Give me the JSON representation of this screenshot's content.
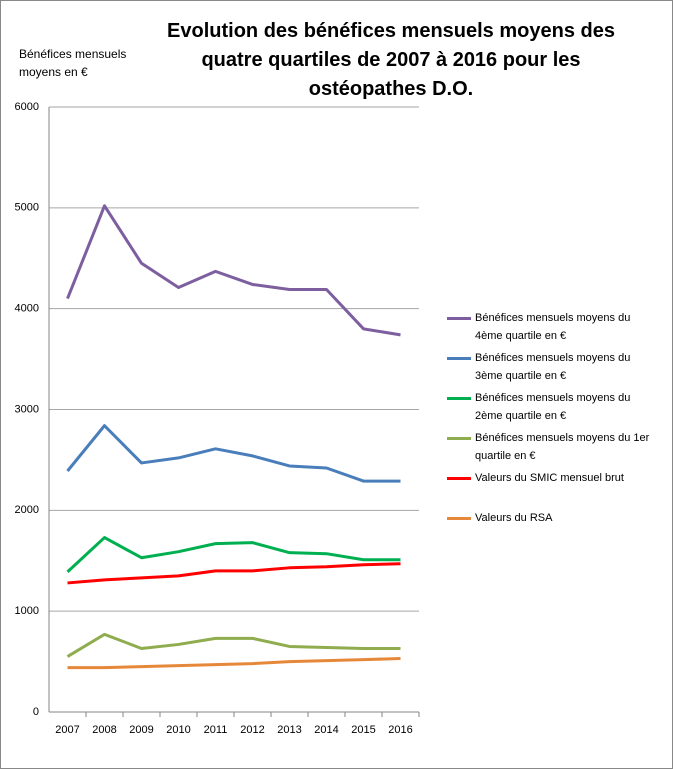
{
  "chart_data": {
    "type": "line",
    "title": "Evolution des bénéfices mensuels moyens des quatre quartiles de 2007 à 2016 pour les ostéopathes D.O.",
    "y_label": "Bénéfices mensuels moyens en €",
    "categories": [
      "2007",
      "2008",
      "2009",
      "2010",
      "2011",
      "2012",
      "2013",
      "2014",
      "2015",
      "2016"
    ],
    "ylim": [
      0,
      6000
    ],
    "yticks": [
      0,
      1000,
      2000,
      3000,
      4000,
      5000,
      6000
    ],
    "grid": true,
    "legend": "right",
    "series": [
      {
        "name": "Bénéfices mensuels moyens du 4ème quartile en €",
        "color": "#7d5fa0",
        "values": [
          4100,
          5020,
          4450,
          4210,
          4370,
          4240,
          4190,
          4190,
          3800,
          3740
        ]
      },
      {
        "name": "Bénéfices mensuels moyens du 3ème quartile en €",
        "color": "#4a7ebb",
        "values": [
          2390,
          2840,
          2470,
          2520,
          2610,
          2540,
          2440,
          2420,
          2290,
          2290
        ]
      },
      {
        "name": "Bénéfices mensuels moyens du 2ème quartile en €",
        "color": "#00b050",
        "values": [
          1390,
          1730,
          1530,
          1590,
          1670,
          1680,
          1580,
          1570,
          1510,
          1510
        ]
      },
      {
        "name": "Bénéfices mensuels moyens du 1er quartile en €",
        "color": "#8fac4e",
        "values": [
          550,
          770,
          630,
          670,
          730,
          730,
          650,
          640,
          630,
          630
        ]
      },
      {
        "name": "Valeurs du SMIC mensuel brut",
        "color": "#ff0000",
        "values": [
          1280,
          1310,
          1330,
          1350,
          1400,
          1400,
          1430,
          1440,
          1460,
          1470
        ]
      },
      {
        "name": "Valeurs du RSA",
        "color": "#e6883a",
        "values": [
          440,
          440,
          450,
          460,
          470,
          480,
          500,
          510,
          520,
          530
        ]
      }
    ]
  }
}
